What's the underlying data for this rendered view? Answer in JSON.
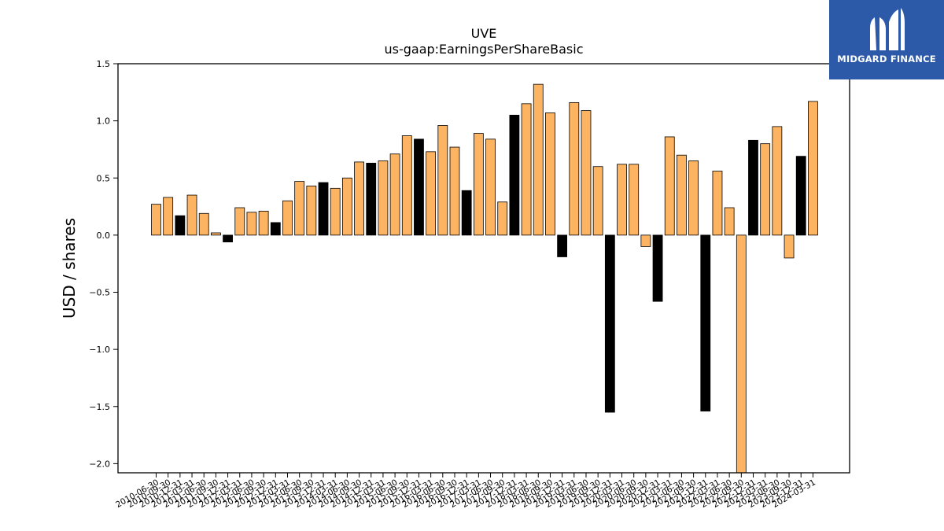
{
  "brand": {
    "name": "MIDGARD FINANCE",
    "bg_color": "#2c5aa8",
    "text_color": "#ffffff"
  },
  "chart_data": {
    "type": "bar",
    "title": "UVE",
    "subtitle": "us-gaap:EarningsPerShareBasic",
    "xlabel": "",
    "ylabel": "USD / shares",
    "ylim": [
      -2.08,
      1.5
    ],
    "yticks": [
      1.5,
      1.0,
      0.5,
      0.0,
      -0.5,
      -1.0,
      -1.5,
      -2.0
    ],
    "ytick_labels": [
      "1.5",
      "1.0",
      "0.5",
      "0.0",
      "−0.5",
      "−1.0",
      "−1.5",
      "−2.0"
    ],
    "grid": false,
    "legend": "none",
    "colors": {
      "orange": "#fdb462",
      "black": "#000000",
      "edge": "#000000"
    },
    "categories": [
      "2010-06-30",
      "2010-09-30",
      "2010-12-31",
      "2011-03-31",
      "2011-06-30",
      "2011-09-30",
      "2011-12-31",
      "2012-03-31",
      "2012-06-30",
      "2012-09-30",
      "2012-12-31",
      "2013-03-31",
      "2013-06-30",
      "2013-09-30",
      "2013-12-31",
      "2014-03-31",
      "2014-06-30",
      "2014-09-30",
      "2014-12-31",
      "2015-03-31",
      "2015-06-30",
      "2015-09-30",
      "2015-12-31",
      "2016-03-31",
      "2016-06-30",
      "2016-09-30",
      "2016-12-31",
      "2017-03-31",
      "2017-06-30",
      "2017-09-30",
      "2017-12-31",
      "2018-03-31",
      "2018-06-30",
      "2018-09-30",
      "2018-12-31",
      "2019-03-31",
      "2019-06-30",
      "2019-09-30",
      "2019-12-31",
      "2020-03-31",
      "2020-06-30",
      "2020-09-30",
      "2020-12-31",
      "2021-03-31",
      "2021-06-30",
      "2021-09-30",
      "2021-12-31",
      "2022-03-31",
      "2022-06-30",
      "2022-09-30",
      "2022-12-31",
      "2023-03-31",
      "2023-06-30",
      "2023-09-30",
      "2023-12-31",
      "2024-03-31"
    ],
    "x_tick_labels": [
      "2010-06-30",
      "2010-09-30",
      "2010-12-31",
      "2011-03-31",
      "2011-06-30",
      "2011-09-30",
      "2011-12-31",
      "2012-03-31",
      "2012-06-30",
      "2012-09-30",
      "2012-12-31",
      "2013-03-31",
      "2013-06-30",
      "2013-09-30",
      "2013-12-31",
      "2014-03-31",
      "2014-06-30",
      "2014-09-30",
      "2014-12-31",
      "2015-03-31",
      "2015-06-30",
      "2015-09-30",
      "2015-12-31",
      "2016-03-31",
      "2016-06-30",
      "2016-09-30",
      "2016-12-31",
      "2017-03-31",
      "2017-06-30",
      "2017-09-30",
      "2017-12-31",
      "2018-03-31",
      "2018-06-30",
      "2018-09-30",
      "2018-12-31",
      "2019-03-31",
      "2019-06-30",
      "2019-09-30",
      "2019-12-31",
      "2020-03-31",
      "2020-06-30",
      "2020-09-30",
      "2020-12-31",
      "2021-03-31",
      "2021-06-30",
      "2021-09-30",
      "2021-12-31",
      "2022-03-31",
      "2022-06-30",
      "2022-09-30",
      "2022-12-31",
      "2023-03-31",
      "2023-06-30",
      "2023-09-30",
      "2023-12-31",
      "2024-03-31"
    ],
    "values": [
      0.27,
      0.33,
      0.17,
      0.35,
      0.19,
      0.02,
      -0.06,
      0.24,
      0.2,
      0.21,
      0.11,
      0.3,
      0.47,
      0.43,
      0.46,
      0.41,
      0.5,
      0.64,
      0.63,
      0.65,
      0.71,
      0.87,
      0.84,
      0.73,
      0.96,
      0.77,
      0.39,
      0.89,
      0.84,
      0.29,
      1.05,
      1.15,
      1.32,
      1.07,
      -0.19,
      1.16,
      1.09,
      0.6,
      -1.55,
      0.62,
      0.62,
      -0.1,
      -0.58,
      0.86,
      0.7,
      0.65,
      -1.54,
      0.56,
      0.24,
      -2.08,
      0.83,
      0.8,
      0.95,
      -0.2,
      0.69,
      1.17
    ],
    "bar_colors": [
      "orange",
      "orange",
      "black",
      "orange",
      "orange",
      "orange",
      "black",
      "orange",
      "orange",
      "orange",
      "black",
      "orange",
      "orange",
      "orange",
      "black",
      "orange",
      "orange",
      "orange",
      "black",
      "orange",
      "orange",
      "orange",
      "black",
      "orange",
      "orange",
      "orange",
      "black",
      "orange",
      "orange",
      "orange",
      "black",
      "orange",
      "orange",
      "orange",
      "black",
      "orange",
      "orange",
      "orange",
      "black",
      "orange",
      "orange",
      "orange",
      "black",
      "orange",
      "orange",
      "orange",
      "black",
      "orange",
      "orange",
      "orange",
      "black",
      "orange",
      "orange",
      "orange",
      "black",
      "orange"
    ]
  }
}
